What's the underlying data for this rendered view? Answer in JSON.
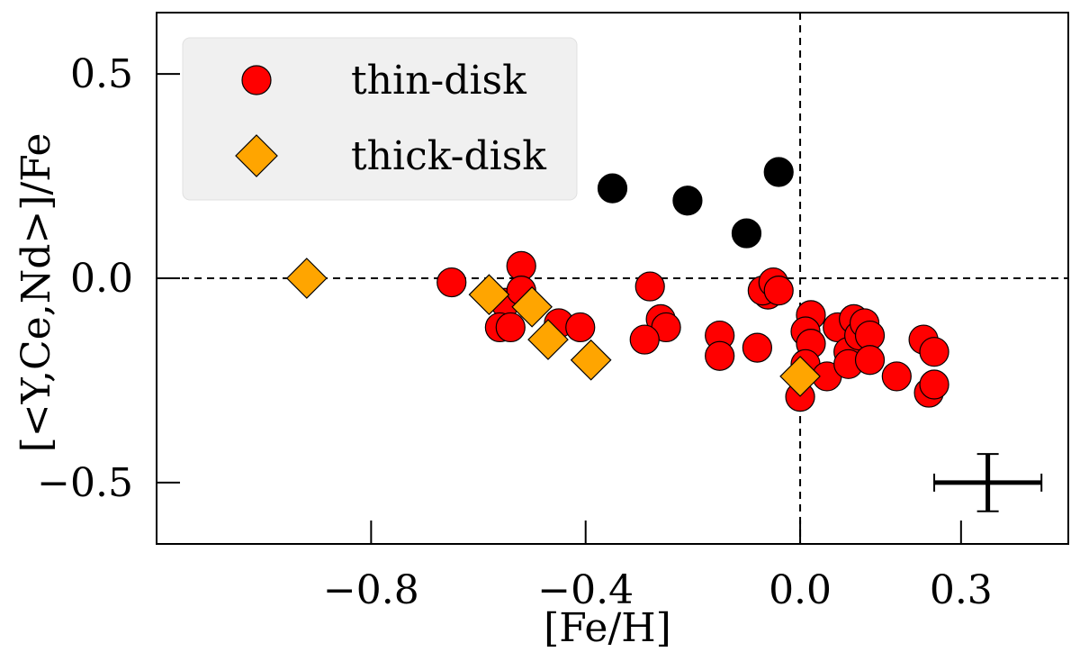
{
  "chart_data": {
    "type": "scatter",
    "xlabel": "[Fe/H]",
    "ylabel": "[<Y,Ce,Nd>]/Fe",
    "xlim": [
      -1.2,
      0.5
    ],
    "ylim": [
      -0.65,
      0.65
    ],
    "xticks": [
      {
        "value": -0.8,
        "label": "−0.8"
      },
      {
        "value": -0.4,
        "label": "−0.4"
      },
      {
        "value": 0.0,
        "label": "0.0"
      },
      {
        "value": 0.3,
        "label": "0.3"
      }
    ],
    "yticks": [
      {
        "value": 0.5,
        "label": "0.5"
      },
      {
        "value": 0.0,
        "label": "0.0"
      },
      {
        "value": -0.5,
        "label": "−0.5"
      }
    ],
    "reference_lines": {
      "x": 0.0,
      "y": 0.0,
      "style": "dashed"
    },
    "legend": {
      "placement": "top-left",
      "entries": [
        "thin-disk",
        "thick-disk"
      ]
    },
    "error_bar": {
      "x": 0.35,
      "y": -0.5,
      "xerr": 0.1,
      "yerr": 0.07
    },
    "series": [
      {
        "name": "thin-disk",
        "marker": "circle",
        "color": "#ff0000",
        "points": [
          [
            -0.65,
            -0.01
          ],
          [
            -0.55,
            -0.06
          ],
          [
            -0.56,
            -0.12
          ],
          [
            -0.52,
            0.03
          ],
          [
            -0.52,
            -0.03
          ],
          [
            -0.54,
            -0.12
          ],
          [
            -0.45,
            -0.11
          ],
          [
            -0.41,
            -0.12
          ],
          [
            -0.28,
            -0.02
          ],
          [
            -0.26,
            -0.1
          ],
          [
            -0.25,
            -0.12
          ],
          [
            -0.29,
            -0.15
          ],
          [
            -0.15,
            -0.14
          ],
          [
            -0.15,
            -0.19
          ],
          [
            -0.08,
            -0.17
          ],
          [
            -0.06,
            -0.04
          ],
          [
            -0.07,
            -0.03
          ],
          [
            -0.05,
            -0.01
          ],
          [
            -0.04,
            -0.03
          ],
          [
            0.02,
            -0.09
          ],
          [
            0.01,
            -0.13
          ],
          [
            0.02,
            -0.16
          ],
          [
            0.01,
            -0.21
          ],
          [
            0.0,
            -0.29
          ],
          [
            0.05,
            -0.24
          ],
          [
            0.07,
            -0.12
          ],
          [
            0.09,
            -0.18
          ],
          [
            0.09,
            -0.21
          ],
          [
            0.1,
            -0.1
          ],
          [
            0.11,
            -0.14
          ],
          [
            0.12,
            -0.11
          ],
          [
            0.13,
            -0.14
          ],
          [
            0.13,
            -0.2
          ],
          [
            0.18,
            -0.24
          ],
          [
            0.23,
            -0.15
          ],
          [
            0.25,
            -0.18
          ],
          [
            0.24,
            -0.28
          ],
          [
            0.25,
            -0.26
          ]
        ]
      },
      {
        "name": "thick-disk",
        "marker": "diamond",
        "color": "#ffa500",
        "points": [
          [
            -0.92,
            0.0
          ],
          [
            -0.58,
            -0.04
          ],
          [
            -0.5,
            -0.07
          ],
          [
            -0.47,
            -0.15
          ],
          [
            -0.39,
            -0.2
          ],
          [
            0.0,
            -0.24
          ]
        ]
      },
      {
        "name": "",
        "marker": "circle",
        "color": "#000000",
        "points": [
          [
            -0.35,
            0.22
          ],
          [
            -0.21,
            0.19
          ],
          [
            -0.1,
            0.11
          ],
          [
            -0.04,
            0.26
          ]
        ]
      }
    ]
  }
}
